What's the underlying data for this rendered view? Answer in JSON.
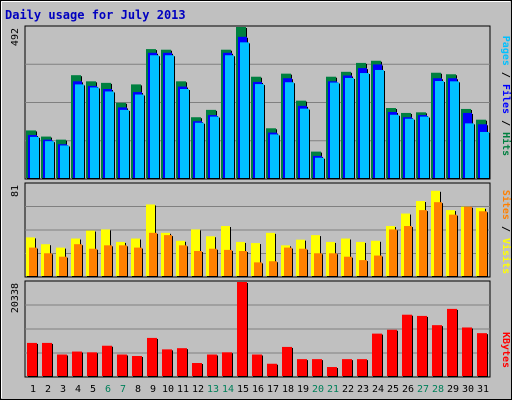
{
  "chart_data": {
    "type": "bar",
    "title": "Daily usage for July 2013",
    "days": [
      "1",
      "2",
      "3",
      "4",
      "5",
      "6",
      "7",
      "8",
      "9",
      "10",
      "11",
      "12",
      "13",
      "14",
      "15",
      "16",
      "17",
      "18",
      "19",
      "20",
      "21",
      "22",
      "23",
      "24",
      "25",
      "26",
      "27",
      "28",
      "29",
      "30",
      "31"
    ],
    "weekend_days": [
      "6",
      "7",
      "13",
      "14",
      "20",
      "21",
      "27",
      "28"
    ],
    "panels": {
      "hits": {
        "ymax": 492,
        "ymax_label": "492",
        "legend": [
          {
            "key": "pages",
            "label": "Pages",
            "color": "#00c0ff"
          },
          {
            "key": "sep1",
            "label": " / ",
            "color": "#000000"
          },
          {
            "key": "files",
            "label": "Files",
            "color": "#0000ff"
          },
          {
            "key": "sep2",
            "label": " / ",
            "color": "#000000"
          },
          {
            "key": "hits",
            "label": "Hits",
            "color": "#008040"
          }
        ],
        "series": [
          {
            "name": "Hits",
            "color": "#008040",
            "values": [
              155,
              135,
              125,
              335,
              315,
              310,
              245,
              305,
              420,
              418,
              315,
              198,
              222,
              418,
              492,
              330,
              162,
              340,
              252,
              86,
              330,
              346,
              375,
              382,
              228,
              212,
              214,
              343,
              338,
              225,
              190
            ]
          },
          {
            "name": "Files",
            "color": "#0000ff",
            "values": [
              140,
              125,
              110,
              315,
              300,
              290,
              230,
              280,
              408,
              408,
              298,
              185,
              205,
              408,
              460,
              313,
              148,
              325,
              235,
              72,
              315,
              334,
              358,
              370,
              215,
              198,
              205,
              325,
              325,
              212,
              175
            ]
          },
          {
            "name": "Pages",
            "color": "#00c0ff",
            "values": [
              134,
              120,
              106,
              305,
              295,
              282,
              222,
              272,
              400,
              400,
              290,
              180,
              200,
              400,
              442,
              306,
              142,
              312,
              226,
              66,
              311,
              326,
              342,
              352,
              206,
              193,
              200,
              316,
              315,
              178,
              150
            ]
          }
        ]
      },
      "visits": {
        "ymax": 81,
        "ymax_label": "81",
        "legend": [
          {
            "key": "sites",
            "label": "Sites",
            "color": "#ff8000"
          },
          {
            "key": "sep1",
            "label": " / ",
            "color": "#000000"
          },
          {
            "key": "visits",
            "label": "Visits",
            "color": "#ffff00"
          }
        ],
        "series": [
          {
            "name": "Visits",
            "color": "#ffff00",
            "values": [
              34,
              28,
              25,
              33,
              40,
              41,
              30,
              33,
              63,
              38,
              31,
              41,
              35,
              44,
              30,
              29,
              38,
              27,
              32,
              36,
              30,
              33,
              30,
              31,
              44,
              55,
              66,
              75,
              58,
              61,
              60
            ]
          },
          {
            "name": "Sites",
            "color": "#ff8000",
            "values": [
              25,
              20,
              17,
              28,
              24,
              27,
              27,
              25,
              38,
              36,
              27,
              22,
              24,
              23,
              22,
              12,
              13,
              25,
              24,
              20,
              20,
              17,
              14,
              18,
              41,
              44,
              58,
              65,
              54,
              61,
              57
            ]
          }
        ]
      },
      "kbytes": {
        "ymax": 20338,
        "ymax_label": "20338",
        "legend": [
          {
            "key": "kbytes",
            "label": "KBytes",
            "color": "#ff0000"
          }
        ],
        "series": [
          {
            "name": "KBytes",
            "color": "#ff0000",
            "values": [
              7160,
              7160,
              4650,
              5290,
              5130,
              6550,
              4650,
              4330,
              8240,
              5760,
              6020,
              2810,
              4650,
              5130,
              20338,
              4650,
              2650,
              6290,
              3650,
              3650,
              1940,
              3650,
              3650,
              9170,
              10000,
              13260,
              13000,
              11000,
              14520,
              10500,
              9270
            ]
          }
        ]
      }
    }
  }
}
